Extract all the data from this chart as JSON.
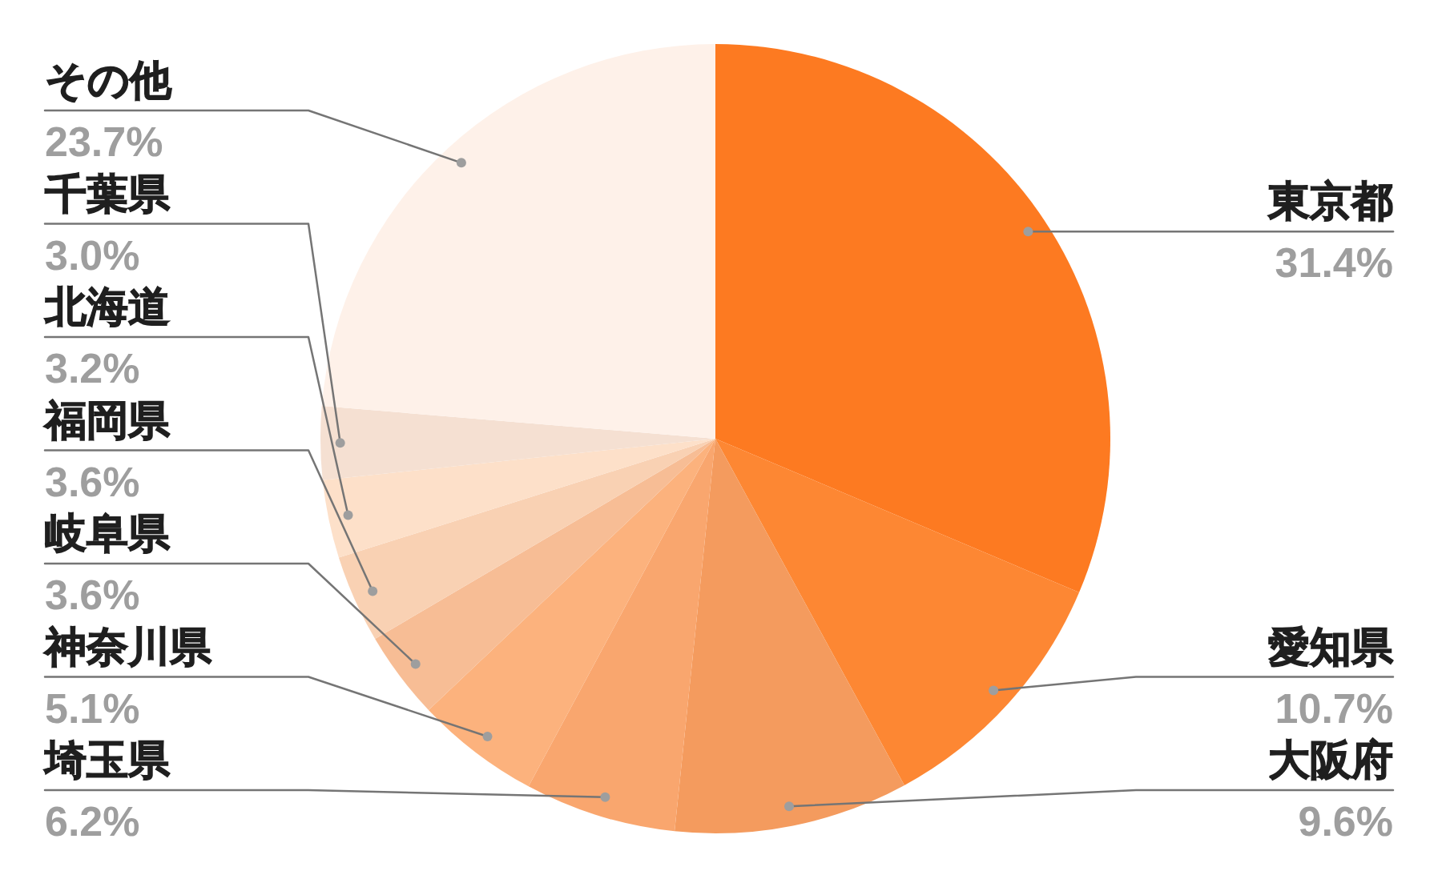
{
  "chart_data": {
    "type": "pie",
    "categories": [
      "東京都",
      "愛知県",
      "大阪府",
      "埼玉県",
      "神奈川県",
      "岐阜県",
      "福岡県",
      "北海道",
      "千葉県",
      "その他"
    ],
    "values": [
      31.4,
      10.7,
      9.6,
      6.2,
      5.1,
      3.6,
      3.6,
      3.2,
      3.0,
      23.7
    ],
    "value_labels": [
      "31.4%",
      "10.7%",
      "9.6%",
      "6.2%",
      "5.1%",
      "3.6%",
      "3.6%",
      "3.2%",
      "3.0%",
      "23.7%"
    ],
    "colors": [
      "#fd7a21",
      "#fd8733",
      "#f49b5e",
      "#f9a66e",
      "#fcb27d",
      "#f7bd95",
      "#f9d1b3",
      "#fde0c9",
      "#f5e0d2",
      "#fef1e9"
    ]
  }
}
